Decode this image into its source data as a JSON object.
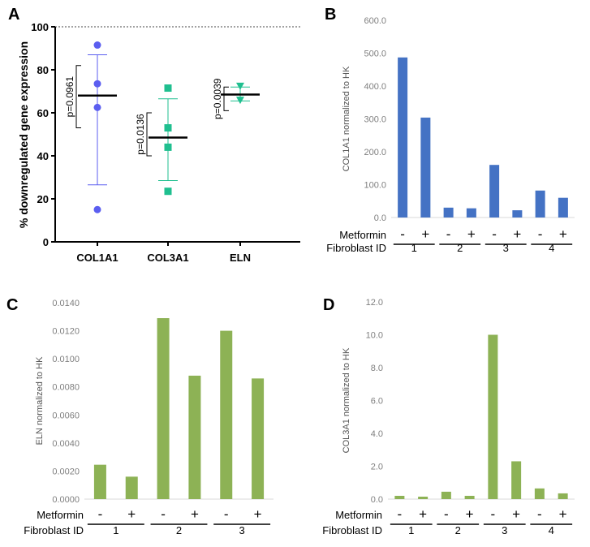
{
  "figure": {
    "panel_letters": [
      "A",
      "B",
      "C",
      "D"
    ],
    "colors": {
      "blue": "#4472c4",
      "purple_dot": "#5b5ef0",
      "teal": "#1fbf8f",
      "green": "#8db255",
      "axis_gray": "#555555",
      "tick_gray": "#7f7f7f"
    }
  },
  "chart_data": [
    {
      "panel": "A",
      "type": "scatter",
      "ylabel": "% downregulated gene expression",
      "ylim": [
        0,
        100
      ],
      "yticks": [
        "0",
        "20",
        "40",
        "60",
        "80",
        "100"
      ],
      "reference_line": 100,
      "categories": [
        "COL1A1",
        "COL3A1",
        "ELN"
      ],
      "series": [
        {
          "name": "COL1A1",
          "marker": "circle",
          "points": [
            91.5,
            73.5,
            62.5,
            15
          ],
          "mean": 68,
          "err": [
            26.5,
            87
          ]
        },
        {
          "name": "COL3A1",
          "marker": "square",
          "points": [
            71.5,
            53,
            44,
            23.5
          ],
          "mean": 48.5,
          "err": [
            28.5,
            66.5
          ]
        },
        {
          "name": "ELN",
          "marker": "triangle-down",
          "points": [
            72.5,
            66
          ],
          "mean": 68.5,
          "err": [
            65.5,
            72
          ]
        }
      ],
      "annotations": [
        {
          "text": "p=0.0961",
          "y_top": 82,
          "y_bottom": 53
        },
        {
          "text": "p=0.0136",
          "y_top": 60,
          "y_bottom": 40
        },
        {
          "text": "p=0.0039",
          "y_top": 72,
          "y_bottom": 61
        }
      ]
    },
    {
      "panel": "B",
      "type": "bar",
      "ylabel": "COL1A1 normalized to HK",
      "ylim": [
        0,
        600
      ],
      "yticks": [
        "0.0",
        "100.0",
        "200.0",
        "300.0",
        "400.0",
        "500.0",
        "600.0"
      ],
      "values": [
        487,
        304,
        30,
        28,
        160,
        22,
        82,
        60
      ],
      "metformin": [
        "-",
        "+",
        "-",
        "+",
        "-",
        "+",
        "-",
        "+"
      ],
      "groups": [
        "1",
        "2",
        "3",
        "4"
      ],
      "row_label_metformin": "Metformin",
      "row_label_fibroblast": "Fibroblast ID"
    },
    {
      "panel": "C",
      "type": "bar",
      "ylabel": "ELN normalized to HK",
      "ylim": [
        0,
        0.014
      ],
      "yticks": [
        "0.0000",
        "0.0020",
        "0.0040",
        "0.0060",
        "0.0080",
        "0.0100",
        "0.0120",
        "0.0140"
      ],
      "values": [
        0.00245,
        0.0016,
        0.0129,
        0.0088,
        0.012,
        0.0086
      ],
      "metformin": [
        "-",
        "+",
        "-",
        "+",
        "-",
        "+"
      ],
      "groups": [
        "1",
        "2",
        "3"
      ],
      "row_label_metformin": "Metformin",
      "row_label_fibroblast": "Fibroblast ID"
    },
    {
      "panel": "D",
      "type": "bar",
      "ylabel": "COL3A1 normalized to HK",
      "ylim": [
        0,
        12
      ],
      "yticks": [
        "0.0",
        "2.0",
        "4.0",
        "6.0",
        "8.0",
        "10.0",
        "12.0"
      ],
      "values": [
        0.2,
        0.15,
        0.45,
        0.2,
        10,
        2.3,
        0.65,
        0.35
      ],
      "metformin": [
        "-",
        "+",
        "-",
        "+",
        "-",
        "+",
        "-",
        "+"
      ],
      "groups": [
        "1",
        "2",
        "3",
        "4"
      ],
      "row_label_metformin": "Metformin",
      "row_label_fibroblast": "Fibroblast ID"
    }
  ]
}
